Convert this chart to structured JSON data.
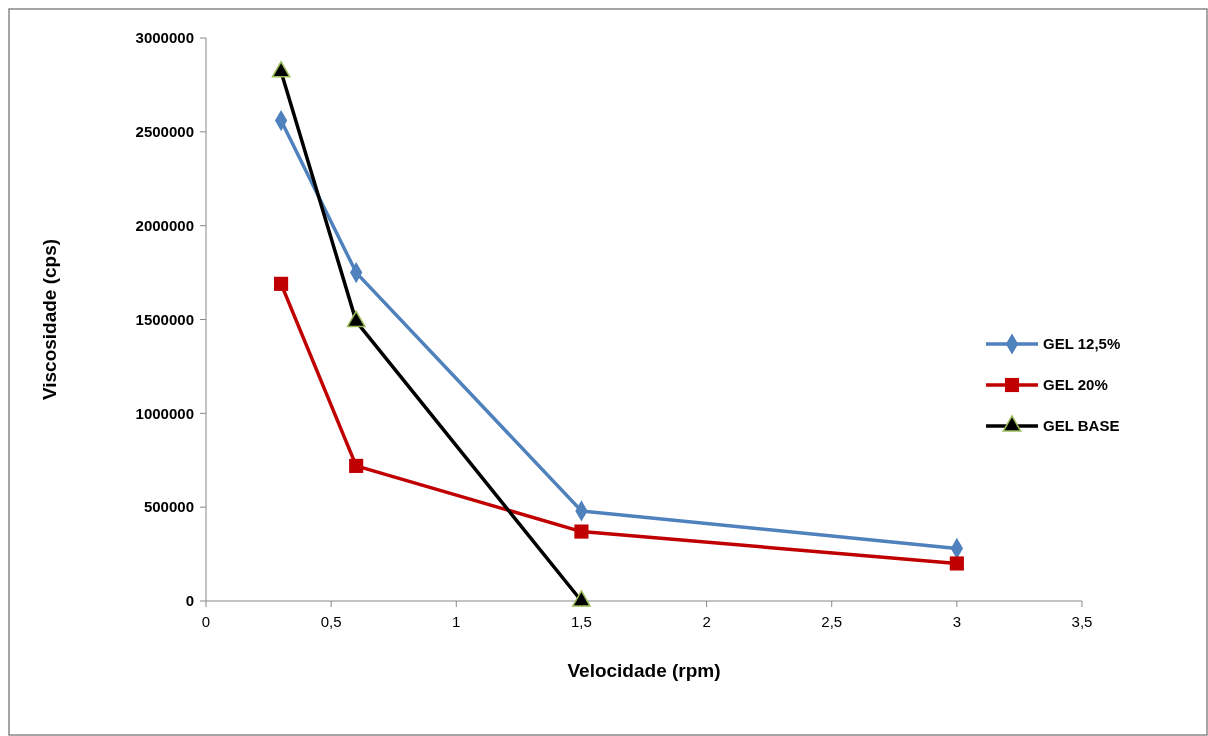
{
  "chart_data": {
    "type": "line",
    "xlabel": "Velocidade (rpm)",
    "ylabel": "Viscosidade (cps)",
    "xlim": [
      0,
      3.5
    ],
    "xticks": [
      0,
      {
        "value": 0.5,
        "label": "0,5"
      },
      1,
      {
        "value": 1.5,
        "label": "1,5"
      },
      2,
      {
        "value": 2.5,
        "label": "2,5"
      },
      3,
      {
        "value": 3.5,
        "label": "3,5"
      }
    ],
    "ylim": [
      0,
      3000000
    ],
    "yticks": [
      0,
      500000,
      1000000,
      1500000,
      2000000,
      2500000,
      3000000
    ],
    "grid": false,
    "legend": "right",
    "line_style": "solid",
    "series": [
      {
        "name": "GEL 12,5%",
        "color": "#4f81bd",
        "marker": "diamond",
        "x": [
          0.3,
          0.6,
          1.5,
          3
        ],
        "values": [
          2560000,
          1750000,
          480000,
          280000
        ]
      },
      {
        "name": "GEL 20%",
        "color": "#c00000",
        "marker": "square",
        "x": [
          0.3,
          0.6,
          1.5,
          3
        ],
        "values": [
          1690000,
          720000,
          370000,
          200000
        ]
      },
      {
        "name": "GEL BASE",
        "color": "#000000",
        "marker": "triangle",
        "x": [
          0.3,
          0.6,
          1.5
        ],
        "values": [
          2820000,
          1490000,
          0
        ]
      }
    ]
  }
}
